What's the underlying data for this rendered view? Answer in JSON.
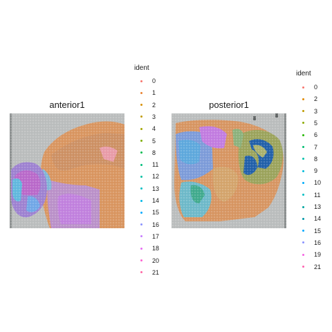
{
  "panels": [
    {
      "title": "anterior1",
      "legend_title": "ident",
      "legend": [
        {
          "label": "0",
          "color": "#F8766D"
        },
        {
          "label": "1",
          "color": "#EA8331"
        },
        {
          "label": "2",
          "color": "#D89000"
        },
        {
          "label": "3",
          "color": "#C09B00"
        },
        {
          "label": "4",
          "color": "#A3A500"
        },
        {
          "label": "5",
          "color": "#7CAE00"
        },
        {
          "label": "8",
          "color": "#00BB4E"
        },
        {
          "label": "11",
          "color": "#00BF7D"
        },
        {
          "label": "12",
          "color": "#00C1A3"
        },
        {
          "label": "13",
          "color": "#00BFC4"
        },
        {
          "label": "14",
          "color": "#00B8E7"
        },
        {
          "label": "15",
          "color": "#00A9FF"
        },
        {
          "label": "16",
          "color": "#8B93FF"
        },
        {
          "label": "17",
          "color": "#C77CFF"
        },
        {
          "label": "18",
          "color": "#E76BF3"
        },
        {
          "label": "20",
          "color": "#FD61D1"
        },
        {
          "label": "21",
          "color": "#FF67A4"
        }
      ]
    },
    {
      "title": "posterior1",
      "legend_title": "ident",
      "legend": [
        {
          "label": "0",
          "color": "#F8766D"
        },
        {
          "label": "2",
          "color": "#E18A00"
        },
        {
          "label": "3",
          "color": "#BE9C00"
        },
        {
          "label": "5",
          "color": "#8CAB00"
        },
        {
          "label": "6",
          "color": "#24B700"
        },
        {
          "label": "7",
          "color": "#00BE70"
        },
        {
          "label": "8",
          "color": "#00C1AB"
        },
        {
          "label": "9",
          "color": "#00BBDA"
        },
        {
          "label": "10",
          "color": "#00ACFC"
        },
        {
          "label": "11",
          "color": "#00BFC4"
        },
        {
          "label": "13",
          "color": "#00A5A0"
        },
        {
          "label": "14",
          "color": "#0097A7"
        },
        {
          "label": "15",
          "color": "#00A9FF"
        },
        {
          "label": "16",
          "color": "#8B93FF"
        },
        {
          "label": "19",
          "color": "#F564E3"
        },
        {
          "label": "21",
          "color": "#FF64B0"
        }
      ]
    }
  ]
}
